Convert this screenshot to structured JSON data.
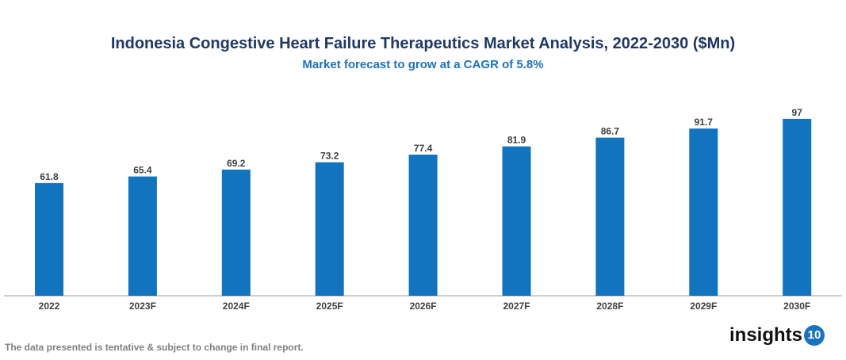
{
  "chart_data": {
    "type": "bar",
    "title": "Indonesia Congestive Heart Failure Therapeutics Market Analysis, 2022-2030 ($Mn)",
    "subtitle": "Market forecast to grow at a CAGR of 5.8%",
    "categories": [
      "2022",
      "2023F",
      "2024F",
      "2025F",
      "2026F",
      "2027F",
      "2028F",
      "2029F",
      "2030F"
    ],
    "values": [
      61.8,
      65.4,
      69.2,
      73.2,
      77.4,
      81.9,
      86.7,
      91.7,
      97
    ],
    "labels": [
      "61.8",
      "65.4",
      "69.2",
      "73.2",
      "77.4",
      "81.9",
      "86.7",
      "91.7",
      "97"
    ],
    "ylim": [
      0,
      100
    ],
    "grid": false,
    "bar_color": "#1273bf"
  },
  "footer": {
    "note": "The data presented is tentative & subject to change in final report.",
    "logo_text": "insights",
    "logo_badge": "10"
  }
}
